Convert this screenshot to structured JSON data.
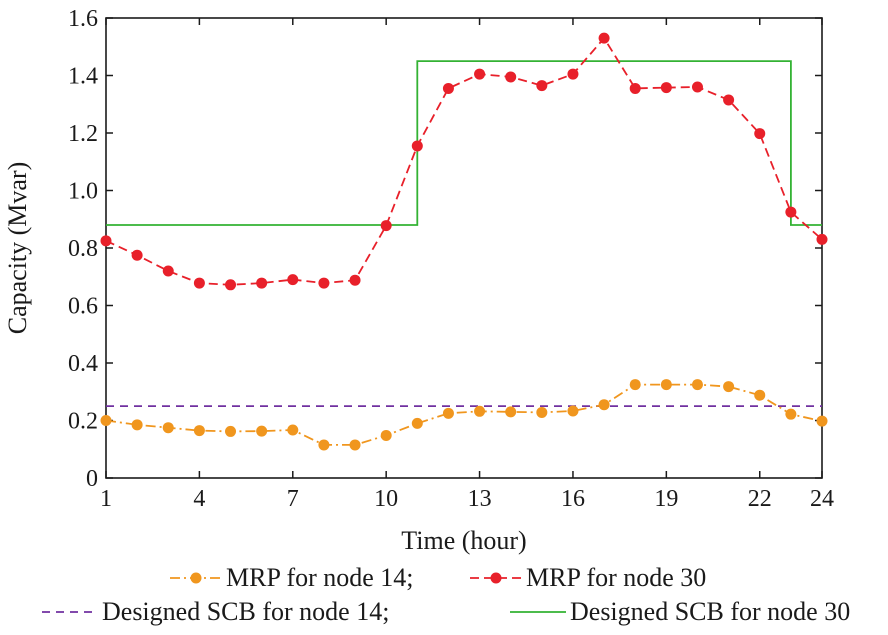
{
  "chart_data": {
    "type": "line",
    "xlabel": "Time (hour)",
    "ylabel": "Capacity (Mvar)",
    "xlim": [
      1,
      24
    ],
    "ylim": [
      0,
      1.6
    ],
    "x_ticks": [
      "1",
      "4",
      "7",
      "10",
      "13",
      "16",
      "19",
      "22",
      "24"
    ],
    "y_ticks": [
      "0",
      "0.2",
      "0.4",
      "0.6",
      "0.8",
      "1.0",
      "1.2",
      "1.4",
      "1.6"
    ],
    "grid": false,
    "legend_position": "bottom",
    "x": [
      1,
      2,
      3,
      4,
      5,
      6,
      7,
      8,
      9,
      10,
      11,
      12,
      13,
      14,
      15,
      16,
      17,
      18,
      19,
      20,
      21,
      22,
      23,
      24
    ],
    "series": [
      {
        "name": "MRP for node 14;",
        "color": "#f0961e",
        "style": "dash-dot-markers",
        "values": [
          0.2,
          0.185,
          0.175,
          0.165,
          0.162,
          0.163,
          0.167,
          0.115,
          0.115,
          0.148,
          0.19,
          0.225,
          0.232,
          0.23,
          0.228,
          0.233,
          0.255,
          0.325,
          0.325,
          0.325,
          0.318,
          0.288,
          0.222,
          0.198
        ]
      },
      {
        "name": "MRP for node 30",
        "color": "#e8202a",
        "style": "dash-markers",
        "values": [
          0.825,
          0.775,
          0.72,
          0.678,
          0.672,
          0.678,
          0.69,
          0.678,
          0.688,
          0.878,
          1.155,
          1.355,
          1.405,
          1.395,
          1.365,
          1.405,
          1.53,
          1.355,
          1.358,
          1.36,
          1.315,
          1.198,
          0.925,
          0.83
        ]
      },
      {
        "name": "Designed SCB for node 14;",
        "color": "#7030a0",
        "style": "dashed",
        "values": [
          0.25,
          0.25,
          0.25,
          0.25,
          0.25,
          0.25,
          0.25,
          0.25,
          0.25,
          0.25,
          0.25,
          0.25,
          0.25,
          0.25,
          0.25,
          0.25,
          0.25,
          0.25,
          0.25,
          0.25,
          0.25,
          0.25,
          0.25,
          0.25
        ]
      },
      {
        "name": "Designed SCB for node 30",
        "color": "#33b233",
        "style": "step",
        "steps": [
          {
            "x_from": 1,
            "x_to": 11,
            "value": 0.88
          },
          {
            "x_from": 11,
            "x_to": 23,
            "value": 1.45
          },
          {
            "x_from": 23,
            "x_to": 24,
            "value": 0.88
          }
        ]
      }
    ]
  }
}
